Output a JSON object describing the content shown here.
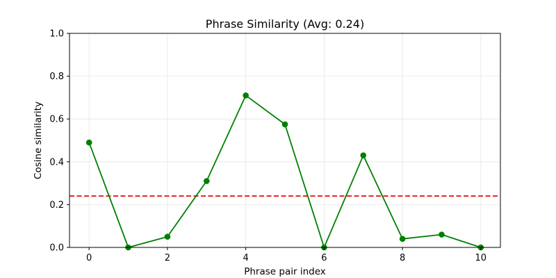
{
  "chart_data": {
    "type": "line",
    "title": "Phrase Similarity (Avg: 0.24)",
    "xlabel": "Phrase pair index",
    "ylabel": "Cosine similarity",
    "x": [
      0,
      1,
      2,
      3,
      4,
      5,
      6,
      7,
      8,
      9,
      10
    ],
    "series": [
      {
        "values": [
          0.49,
          0.0,
          0.05,
          0.31,
          0.71,
          0.575,
          0.0,
          0.43,
          0.04,
          0.06,
          0.0
        ],
        "color": "#008000",
        "marker": "circle"
      }
    ],
    "reference_line": {
      "y": 0.24,
      "color": "#e31a1c",
      "style": "dashed"
    },
    "xlim": [
      -0.5,
      10.5
    ],
    "ylim": [
      0.0,
      1.0
    ],
    "xticks": [
      "0",
      "2",
      "4",
      "6",
      "8",
      "10"
    ],
    "xtick_values": [
      0,
      2,
      4,
      6,
      8,
      10
    ],
    "yticks": [
      "0.0",
      "0.2",
      "0.4",
      "0.6",
      "0.8",
      "1.0"
    ],
    "ytick_values": [
      0.0,
      0.2,
      0.4,
      0.6,
      0.8,
      1.0
    ],
    "grid": true
  }
}
